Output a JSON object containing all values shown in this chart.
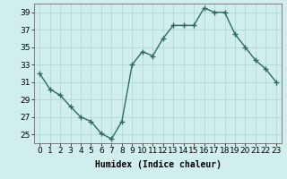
{
  "x": [
    0,
    1,
    2,
    3,
    4,
    5,
    6,
    7,
    8,
    9,
    10,
    11,
    12,
    13,
    14,
    15,
    16,
    17,
    18,
    19,
    20,
    21,
    22,
    23
  ],
  "y": [
    32.0,
    30.2,
    29.5,
    28.2,
    27.0,
    26.5,
    25.1,
    24.5,
    26.5,
    33.0,
    34.5,
    34.0,
    36.0,
    37.5,
    37.5,
    37.5,
    39.5,
    39.0,
    39.0,
    36.5,
    35.0,
    33.5,
    32.5,
    31.0
  ],
  "line_color": "#2e6b5e",
  "marker": "+",
  "marker_size": 4,
  "bg_color": "#d0eeee",
  "grid_color": "#b0d8d8",
  "xlabel": "Humidex (Indice chaleur)",
  "xlim": [
    -0.5,
    23.5
  ],
  "ylim": [
    24.0,
    40.0
  ],
  "yticks": [
    25,
    27,
    29,
    31,
    33,
    35,
    37,
    39
  ],
  "xtick_labels": [
    "0",
    "1",
    "2",
    "3",
    "4",
    "5",
    "6",
    "7",
    "8",
    "9",
    "10",
    "11",
    "12",
    "13",
    "14",
    "15",
    "16",
    "17",
    "18",
    "19",
    "20",
    "21",
    "22",
    "23"
  ],
  "xlabel_fontsize": 7,
  "tick_fontsize": 6.5,
  "linewidth": 1.0,
  "markeredgewidth": 1.0
}
